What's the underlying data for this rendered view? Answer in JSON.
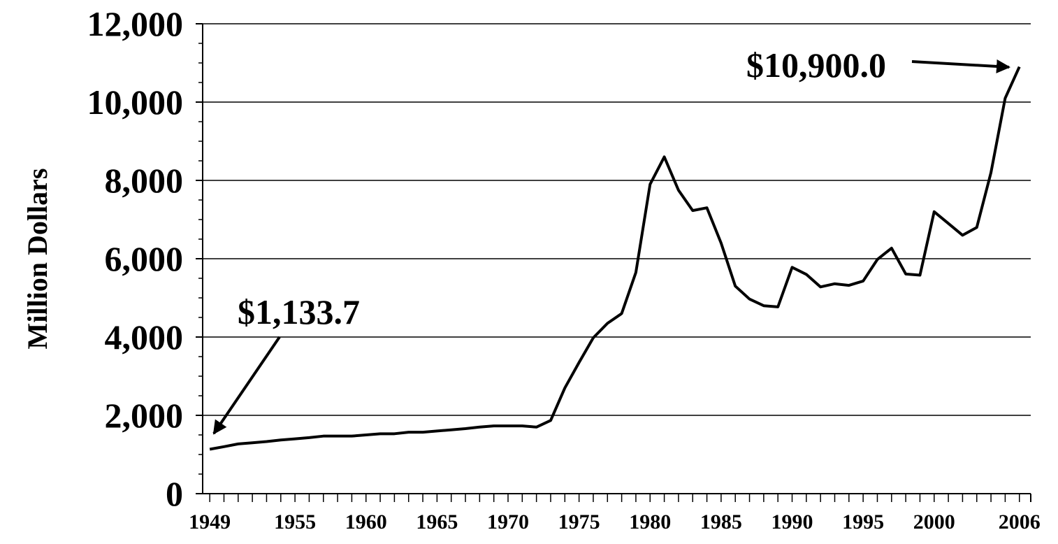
{
  "chart_data": {
    "type": "line",
    "y_label": "Million Dollars",
    "x": [
      1949,
      1950,
      1951,
      1952,
      1953,
      1954,
      1955,
      1956,
      1957,
      1958,
      1959,
      1960,
      1961,
      1962,
      1963,
      1964,
      1965,
      1966,
      1967,
      1968,
      1969,
      1970,
      1971,
      1972,
      1973,
      1974,
      1975,
      1976,
      1977,
      1978,
      1979,
      1980,
      1981,
      1982,
      1983,
      1984,
      1985,
      1986,
      1987,
      1988,
      1989,
      1990,
      1991,
      1992,
      1993,
      1994,
      1995,
      1996,
      1997,
      1998,
      1999,
      2000,
      2001,
      2002,
      2003,
      2004,
      2005,
      2006
    ],
    "series": [
      {
        "color": "#000000",
        "values": [
          1133.7,
          1200,
          1270,
          1300,
          1330,
          1370,
          1400,
          1430,
          1470,
          1470,
          1470,
          1500,
          1530,
          1530,
          1570,
          1570,
          1600,
          1630,
          1660,
          1700,
          1730,
          1730,
          1730,
          1700,
          1870,
          2700,
          3350,
          3980,
          4350,
          4600,
          5650,
          7900,
          8600,
          7750,
          7230,
          7300,
          6400,
          5300,
          4970,
          4800,
          4770,
          5780,
          5600,
          5280,
          5360,
          5320,
          5430,
          5980,
          6270,
          5610,
          5580,
          7200,
          6900,
          6600,
          6800,
          8200,
          10100,
          10900
        ]
      }
    ],
    "xlim": [
      1948.5,
      2006.8
    ],
    "xticks": [
      1949,
      1955,
      1960,
      1965,
      1970,
      1975,
      1980,
      1985,
      1990,
      1995,
      2000,
      2006
    ],
    "ylim": [
      0,
      12000
    ],
    "yticks": [
      {
        "value": 0,
        "label": "0"
      },
      {
        "value": 2000,
        "label": "2,000"
      },
      {
        "value": 4000,
        "label": "4,000"
      },
      {
        "value": 6000,
        "label": "6,000"
      },
      {
        "value": 8000,
        "label": "8,000"
      },
      {
        "value": 10000,
        "label": "10,000"
      },
      {
        "value": 12000,
        "label": "12,000"
      }
    ],
    "grid": true,
    "annotations": [
      "$1,133.7",
      "$10,900.0"
    ]
  }
}
